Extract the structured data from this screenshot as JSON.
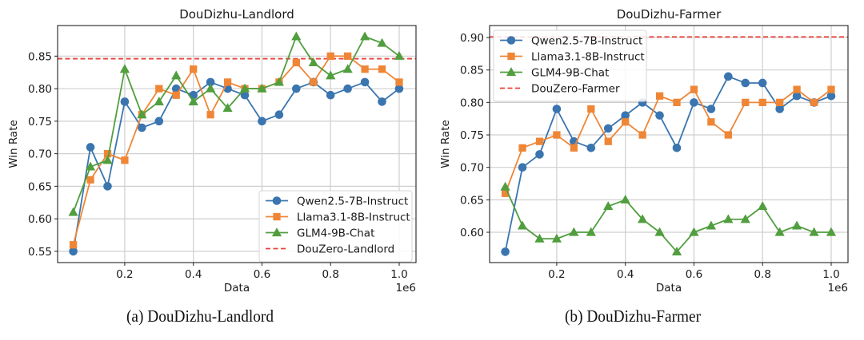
{
  "chart_data": [
    {
      "type": "line",
      "title": "DouDizhu-Landlord",
      "caption": "(a) DouDizhu-Landlord",
      "xlabel": "Data",
      "ylabel": "Win Rate",
      "x_offset_label": "1e6",
      "xlim": [
        0.0043,
        1.049
      ],
      "ylim": [
        0.5327,
        0.897
      ],
      "xticks": [
        0.2,
        0.4,
        0.6,
        0.8,
        1.0
      ],
      "xtick_labels": [
        "0.2",
        "0.4",
        "0.6",
        "0.8",
        "1.0"
      ],
      "yticks": [
        0.55,
        0.6,
        0.65,
        0.7,
        0.75,
        0.8,
        0.85
      ],
      "ytick_labels": [
        "0.55",
        "0.60",
        "0.65",
        "0.70",
        "0.75",
        "0.80",
        "0.85"
      ],
      "grid": true,
      "legend_position": "lower-right",
      "x": [
        0.05,
        0.1,
        0.15,
        0.2,
        0.25,
        0.3,
        0.35,
        0.4,
        0.45,
        0.5,
        0.55,
        0.6,
        0.65,
        0.7,
        0.75,
        0.8,
        0.85,
        0.9,
        0.95,
        1.0
      ],
      "series": [
        {
          "name": "Qwen2.5-7B-Instruct",
          "color": "#3a75af",
          "marker": "circle",
          "values": [
            0.55,
            0.71,
            0.65,
            0.78,
            0.74,
            0.75,
            0.8,
            0.79,
            0.81,
            0.8,
            0.79,
            0.75,
            0.76,
            0.8,
            0.81,
            0.79,
            0.8,
            0.81,
            0.78,
            0.8
          ]
        },
        {
          "name": "Llama3.1-8B-Instruct",
          "color": "#ef8636",
          "marker": "square",
          "values": [
            0.56,
            0.66,
            0.7,
            0.69,
            0.76,
            0.8,
            0.79,
            0.83,
            0.76,
            0.81,
            0.8,
            0.8,
            0.81,
            0.84,
            0.81,
            0.85,
            0.85,
            0.83,
            0.83,
            0.81
          ]
        },
        {
          "name": "GLM4-9B-Chat",
          "color": "#519e3e",
          "marker": "triangle",
          "values": [
            0.61,
            0.68,
            0.69,
            0.83,
            0.76,
            0.78,
            0.82,
            0.78,
            0.8,
            0.77,
            0.8,
            0.8,
            0.81,
            0.88,
            0.84,
            0.82,
            0.83,
            0.88,
            0.87,
            0.85
          ]
        }
      ],
      "reference_line": {
        "name": "DouZero-Landlord",
        "color": "#e8413a",
        "value": 0.846
      }
    },
    {
      "type": "line",
      "title": "DouDizhu-Farmer",
      "caption": "(b) DouDizhu-Farmer",
      "xlabel": "Data",
      "ylabel": "Win Rate",
      "x_offset_label": "1e6",
      "xlim": [
        0.0043,
        1.049
      ],
      "ylim": [
        0.5533,
        0.9185
      ],
      "xticks": [
        0.2,
        0.4,
        0.6,
        0.8,
        1.0
      ],
      "xtick_labels": [
        "0.2",
        "0.4",
        "0.6",
        "0.8",
        "1.0"
      ],
      "yticks": [
        0.6,
        0.65,
        0.7,
        0.75,
        0.8,
        0.85,
        0.9
      ],
      "ytick_labels": [
        "0.60",
        "0.65",
        "0.70",
        "0.75",
        "0.80",
        "0.85",
        "0.90"
      ],
      "grid": true,
      "legend_position": "upper-left",
      "x": [
        0.05,
        0.1,
        0.15,
        0.2,
        0.25,
        0.3,
        0.35,
        0.4,
        0.45,
        0.5,
        0.55,
        0.6,
        0.65,
        0.7,
        0.75,
        0.8,
        0.85,
        0.9,
        0.95,
        1.0
      ],
      "series": [
        {
          "name": "Qwen2.5-7B-Instruct",
          "color": "#3a75af",
          "marker": "circle",
          "values": [
            0.57,
            0.7,
            0.72,
            0.79,
            0.74,
            0.73,
            0.76,
            0.78,
            0.8,
            0.78,
            0.73,
            0.8,
            0.79,
            0.84,
            0.83,
            0.83,
            0.79,
            0.81,
            0.8,
            0.81
          ]
        },
        {
          "name": "Llama3.1-8B-Instruct",
          "color": "#ef8636",
          "marker": "square",
          "values": [
            0.66,
            0.73,
            0.74,
            0.75,
            0.73,
            0.79,
            0.74,
            0.77,
            0.75,
            0.81,
            0.8,
            0.82,
            0.77,
            0.75,
            0.8,
            0.8,
            0.8,
            0.82,
            0.8,
            0.82
          ]
        },
        {
          "name": "GLM4-9B-Chat",
          "color": "#519e3e",
          "marker": "triangle",
          "values": [
            0.67,
            0.61,
            0.59,
            0.59,
            0.6,
            0.6,
            0.64,
            0.65,
            0.62,
            0.6,
            0.57,
            0.6,
            0.61,
            0.62,
            0.62,
            0.64,
            0.6,
            0.61,
            0.6,
            0.6
          ]
        }
      ],
      "reference_line": {
        "name": "DouZero-Farmer",
        "color": "#e8413a",
        "value": 0.901
      }
    }
  ]
}
